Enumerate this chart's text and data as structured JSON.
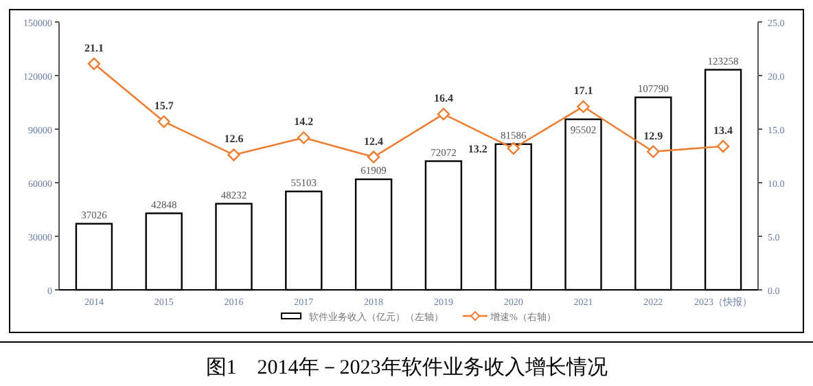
{
  "chart_data": {
    "type": "bar",
    "title": "图1　2014年－2023年软件业务收入增长情况",
    "categories": [
      "2014",
      "2015",
      "2016",
      "2017",
      "2018",
      "2019",
      "2020",
      "2021",
      "2022",
      "2023（快报）"
    ],
    "series": [
      {
        "name": "软件业务收入（亿元）（左轴）",
        "color": "#ffffff",
        "values": [
          37026,
          42848,
          48232,
          55103,
          61909,
          72072,
          81586,
          95502,
          107790,
          123258
        ],
        "value_labels": [
          "37026",
          "42848",
          "48232",
          "55103",
          "61909",
          "72072",
          "81586",
          "95502",
          "107790",
          "123258"
        ]
      },
      {
        "name": "增速%（右轴）",
        "type": "line",
        "axis": "y2",
        "color": "#ed7d31",
        "marker": "diamond",
        "values": [
          21.1,
          15.7,
          12.6,
          14.2,
          12.4,
          16.4,
          13.2,
          17.1,
          12.9,
          13.4
        ],
        "value_labels": [
          "21.1",
          "15.7",
          "12.6",
          "14.2",
          "12.4",
          "16.4",
          "13.2",
          "17.1",
          "12.9",
          "13.4"
        ]
      }
    ],
    "ylim": [
      0,
      150000
    ],
    "yticks": [
      0,
      30000,
      60000,
      90000,
      120000,
      150000
    ],
    "y2lim": [
      0,
      25
    ],
    "y2ticks": [
      {
        "value": 0,
        "label": "0.0"
      },
      {
        "value": 5,
        "label": "5.0"
      },
      {
        "value": 10,
        "label": "10.0"
      },
      {
        "value": 15,
        "label": "15.0"
      },
      {
        "value": 20,
        "label": "20.0"
      },
      {
        "value": 25,
        "label": "25.0"
      }
    ],
    "legend": "bottom",
    "grid": false
  }
}
